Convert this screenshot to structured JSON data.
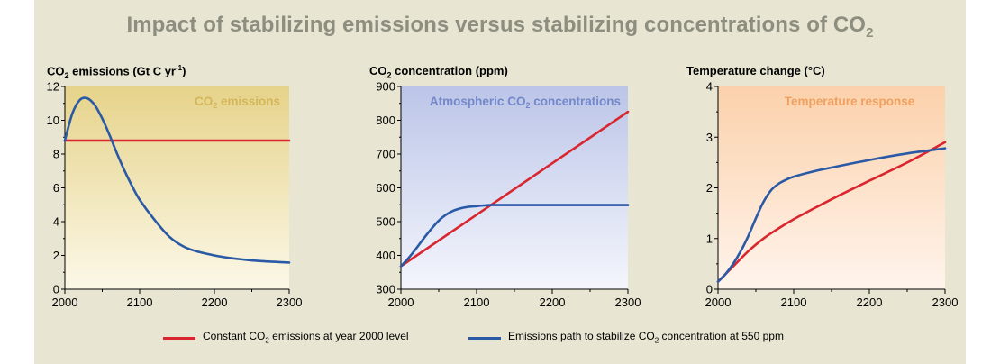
{
  "title": {
    "prefix": "Impact of stabilizing emissions versus stabilizing concentrations of CO",
    "sub": "2"
  },
  "colors": {
    "red": "#d9262e",
    "blue": "#2a5aa5",
    "frame": "#e8e6d2"
  },
  "legend": {
    "red": {
      "a": "Constant CO",
      "sub": "2",
      "b": " emissions at year 2000 level"
    },
    "blue": {
      "a": "Emissions path to stabilize CO",
      "sub": "2",
      "b": " concentration at 550 ppm"
    }
  },
  "chart_data": [
    {
      "type": "line",
      "panel_title": {
        "a": "CO",
        "sub": "2",
        "b": " emissions (Gt C yr",
        "sup": "-1",
        "c": ")"
      },
      "inset_label": {
        "a": "CO",
        "sub": "2",
        "b": " emissions"
      },
      "xlim": [
        2000,
        2300
      ],
      "ylim": [
        0,
        12
      ],
      "xticks": [
        2000,
        2100,
        2200,
        2300
      ],
      "yticks": [
        0,
        2,
        4,
        6,
        8,
        10,
        12
      ],
      "series": [
        {
          "color": "red",
          "x": [
            2000,
            2300
          ],
          "y": [
            8.8,
            8.8
          ]
        },
        {
          "color": "blue",
          "x": [
            2000,
            2010,
            2020,
            2030,
            2040,
            2050,
            2060,
            2070,
            2080,
            2090,
            2100,
            2120,
            2140,
            2160,
            2180,
            2200,
            2220,
            2240,
            2260,
            2280,
            2300
          ],
          "y": [
            8.8,
            10.4,
            11.2,
            11.3,
            10.9,
            10.1,
            9.1,
            8.0,
            7.0,
            6.1,
            5.3,
            4.1,
            3.1,
            2.5,
            2.2,
            2.0,
            1.85,
            1.75,
            1.67,
            1.62,
            1.58
          ]
        }
      ]
    },
    {
      "type": "line",
      "panel_title": {
        "a": "CO",
        "sub": "2",
        "b": " concentration (ppm)"
      },
      "inset_label": {
        "a": "Atmospheric CO",
        "sub": "2",
        "b": " concentrations"
      },
      "xlim": [
        2000,
        2300
      ],
      "ylim": [
        300,
        900
      ],
      "xticks": [
        2000,
        2100,
        2200,
        2300
      ],
      "yticks": [
        300,
        400,
        500,
        600,
        700,
        800,
        900
      ],
      "series": [
        {
          "color": "red",
          "x": [
            2000,
            2300
          ],
          "y": [
            368,
            825
          ]
        },
        {
          "color": "blue",
          "x": [
            2000,
            2010,
            2020,
            2030,
            2040,
            2050,
            2060,
            2070,
            2080,
            2090,
            2100,
            2110,
            2120,
            2150,
            2200,
            2250,
            2300
          ],
          "y": [
            368,
            392,
            420,
            450,
            478,
            503,
            521,
            533,
            540,
            544,
            546,
            548,
            549,
            549,
            549,
            549,
            549
          ]
        }
      ]
    },
    {
      "type": "line",
      "panel_title": {
        "a": "Temperature change (°C)"
      },
      "inset_label": {
        "a": "Temperature response"
      },
      "xlim": [
        2000,
        2300
      ],
      "ylim": [
        0,
        4
      ],
      "xticks": [
        2000,
        2100,
        2200,
        2300
      ],
      "yticks": [
        0,
        1,
        2,
        3,
        4
      ],
      "series": [
        {
          "color": "red",
          "x": [
            2000,
            2020,
            2040,
            2060,
            2080,
            2100,
            2130,
            2160,
            2200,
            2250,
            2300
          ],
          "y": [
            0.15,
            0.45,
            0.75,
            1.0,
            1.2,
            1.38,
            1.62,
            1.85,
            2.14,
            2.5,
            2.9
          ]
        },
        {
          "color": "blue",
          "x": [
            2000,
            2010,
            2020,
            2030,
            2040,
            2050,
            2060,
            2070,
            2080,
            2090,
            2100,
            2125,
            2150,
            2200,
            2250,
            2300
          ],
          "y": [
            0.15,
            0.3,
            0.5,
            0.75,
            1.05,
            1.4,
            1.72,
            1.95,
            2.08,
            2.16,
            2.22,
            2.32,
            2.4,
            2.55,
            2.68,
            2.78
          ]
        }
      ]
    }
  ]
}
